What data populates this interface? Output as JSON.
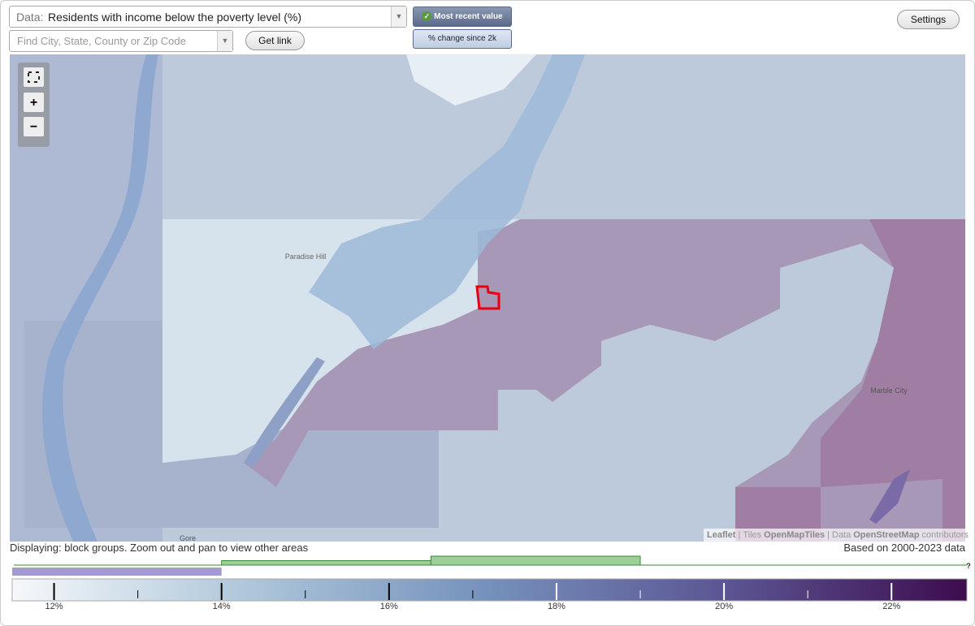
{
  "toolbar": {
    "data_label": "Data:",
    "data_value": "Residents with income below the poverty level (%)",
    "search_placeholder": "Find City, State, County or Zip Code",
    "get_link": "Get link",
    "mode_buttons": [
      "Most recent value",
      "% change since 2k"
    ],
    "settings": "Settings"
  },
  "map": {
    "zoom": [
      "+",
      "−"
    ],
    "places": [
      "Paradise Hill",
      "Marble City",
      "Gore"
    ],
    "attribution": [
      "Leaflet",
      "|",
      "Tiles",
      "OpenMapTiles",
      "|",
      "Data",
      "OpenStreetMap",
      "contributors"
    ]
  },
  "status": {
    "displaying": "Displaying: block groups. Zoom out and pan to view other areas",
    "based_on": "Based on 2000-2023 data"
  },
  "legend": {
    "range": [
      11.5,
      22.9
    ],
    "ticks": [
      {
        "value": 12,
        "label": "12%"
      },
      {
        "value": 14,
        "label": "14%"
      },
      {
        "value": 16,
        "label": "16%"
      },
      {
        "value": 18,
        "label": "18%"
      },
      {
        "value": 20,
        "label": "20%"
      },
      {
        "value": 22,
        "label": "22%"
      }
    ],
    "minor_ticks": [
      13,
      15,
      17,
      19,
      21
    ],
    "histogram": {
      "bins": [
        11.5,
        14,
        16.5,
        19,
        21.5
      ],
      "counts": [
        0,
        1,
        2,
        0
      ],
      "selected_bin": 0
    },
    "help": "?"
  }
}
